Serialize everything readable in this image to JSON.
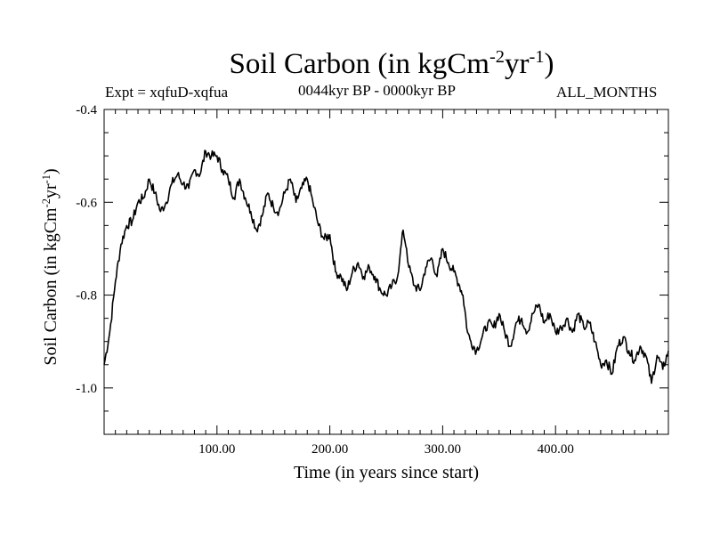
{
  "chart_data": {
    "type": "line",
    "title_main": "Soil Carbon (in kgCm",
    "title_sup1": "-2",
    "title_mid": "yr",
    "title_sup2": "-1",
    "title_end": ")",
    "experiment": "Expt = xqfuD-xqfua",
    "period": "0044kyr BP - 0000kyr BP",
    "months": "ALL_MONTHS",
    "xlabel": "Time (in years since start)",
    "ylabel_main": "Soil Carbon (in kgCm",
    "ylabel_sup1": "-2",
    "ylabel_mid": "yr",
    "ylabel_sup2": "-1",
    "ylabel_end": ")",
    "xlim": [
      0,
      500
    ],
    "ylim": [
      -1.1,
      -0.4
    ],
    "x_ticks": [
      100,
      200,
      300,
      400
    ],
    "x_tick_labels": [
      "100.00",
      "200.00",
      "300.00",
      "400.00"
    ],
    "y_ticks": [
      -0.4,
      -0.6,
      -0.8,
      -1.0
    ],
    "y_tick_labels": [
      "-0.4",
      "-0.6",
      "-0.8",
      "-1.0"
    ],
    "line_color": "#000000",
    "series": [
      {
        "name": "Soil Carbon",
        "x": [
          0,
          5,
          10,
          15,
          20,
          25,
          30,
          35,
          40,
          45,
          50,
          55,
          60,
          65,
          70,
          75,
          80,
          85,
          90,
          95,
          100,
          105,
          110,
          115,
          120,
          125,
          130,
          135,
          140,
          145,
          150,
          155,
          160,
          165,
          170,
          175,
          180,
          185,
          190,
          195,
          200,
          205,
          210,
          215,
          220,
          225,
          230,
          235,
          240,
          245,
          250,
          255,
          260,
          262,
          265,
          268,
          270,
          275,
          280,
          285,
          290,
          295,
          300,
          305,
          310,
          315,
          318,
          322,
          325,
          330,
          335,
          340,
          345,
          350,
          355,
          360,
          365,
          370,
          375,
          380,
          385,
          390,
          395,
          400,
          405,
          410,
          415,
          420,
          425,
          430,
          435,
          440,
          445,
          450,
          455,
          460,
          465,
          470,
          475,
          480,
          485,
          490,
          495,
          500
        ],
        "y": [
          -0.95,
          -0.88,
          -0.77,
          -0.69,
          -0.65,
          -0.64,
          -0.6,
          -0.59,
          -0.55,
          -0.58,
          -0.62,
          -0.6,
          -0.56,
          -0.54,
          -0.56,
          -0.57,
          -0.53,
          -0.54,
          -0.49,
          -0.5,
          -0.5,
          -0.53,
          -0.55,
          -0.59,
          -0.55,
          -0.59,
          -0.62,
          -0.66,
          -0.63,
          -0.58,
          -0.61,
          -0.62,
          -0.58,
          -0.55,
          -0.6,
          -0.57,
          -0.55,
          -0.6,
          -0.65,
          -0.68,
          -0.67,
          -0.75,
          -0.76,
          -0.79,
          -0.75,
          -0.73,
          -0.76,
          -0.74,
          -0.76,
          -0.79,
          -0.8,
          -0.78,
          -0.76,
          -0.72,
          -0.66,
          -0.7,
          -0.74,
          -0.78,
          -0.79,
          -0.74,
          -0.72,
          -0.76,
          -0.7,
          -0.73,
          -0.75,
          -0.78,
          -0.8,
          -0.88,
          -0.9,
          -0.92,
          -0.89,
          -0.86,
          -0.87,
          -0.84,
          -0.88,
          -0.91,
          -0.86,
          -0.85,
          -0.88,
          -0.84,
          -0.82,
          -0.86,
          -0.84,
          -0.88,
          -0.87,
          -0.85,
          -0.88,
          -0.84,
          -0.87,
          -0.86,
          -0.9,
          -0.95,
          -0.94,
          -0.97,
          -0.91,
          -0.89,
          -0.92,
          -0.94,
          -0.91,
          -0.93,
          -0.99,
          -0.93,
          -0.96,
          -0.92
        ]
      }
    ]
  }
}
